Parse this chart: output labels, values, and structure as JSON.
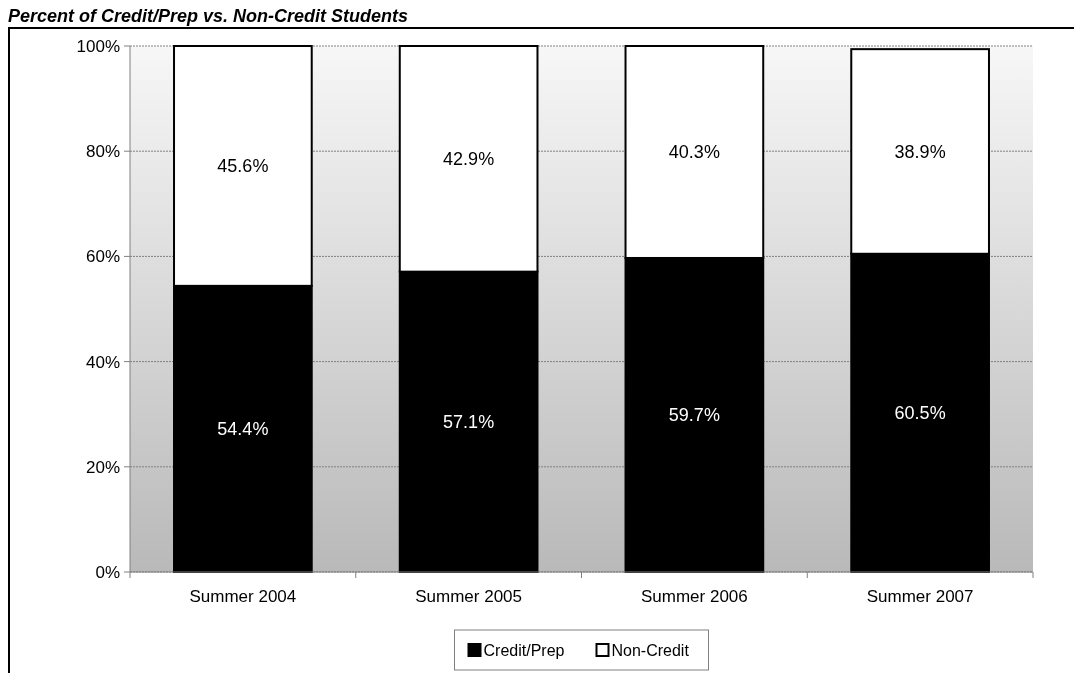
{
  "chart_data": {
    "type": "bar",
    "title": "Percent of Credit/Prep vs. Non-Credit Students",
    "stacked": true,
    "categories": [
      "Summer 2004",
      "Summer 2005",
      "Summer 2006",
      "Summer 2007"
    ],
    "series": [
      {
        "name": "Credit/Prep",
        "color": "#000000",
        "values": [
          54.4,
          57.1,
          59.7,
          60.5
        ],
        "value_labels": [
          "54.4%",
          "57.1%",
          "59.7%",
          "60.5%"
        ]
      },
      {
        "name": "Non-Credit",
        "color": "#ffffff",
        "values": [
          45.6,
          42.9,
          40.3,
          38.9
        ],
        "value_labels": [
          "45.6%",
          "42.9%",
          "40.3%",
          "38.9%"
        ]
      }
    ],
    "ylim": [
      0,
      100
    ],
    "yticks": [
      {
        "value": 0,
        "label": "0%"
      },
      {
        "value": 20,
        "label": "20%"
      },
      {
        "value": 40,
        "label": "40%"
      },
      {
        "value": 60,
        "label": "60%"
      },
      {
        "value": 80,
        "label": "80%"
      },
      {
        "value": 100,
        "label": "100%"
      }
    ],
    "grid": "y",
    "legend": "bottom"
  }
}
